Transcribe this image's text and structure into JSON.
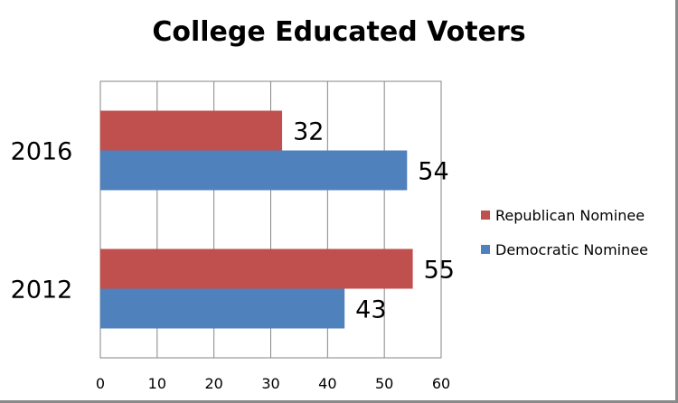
{
  "chart_data": {
    "type": "bar",
    "orientation": "horizontal",
    "title": "College Educated Voters",
    "categories": [
      "2016",
      "2012"
    ],
    "series": [
      {
        "name": "Republican Nominee",
        "color": "#c0504d",
        "values": [
          32,
          55
        ]
      },
      {
        "name": "Democratic Nominee",
        "color": "#4f81bd",
        "values": [
          54,
          43
        ]
      }
    ],
    "xlim": [
      0,
      60
    ],
    "xticks": [
      0,
      10,
      20,
      30,
      40,
      50,
      60
    ],
    "grid": true,
    "data_labels": true,
    "legend_position": "right"
  }
}
